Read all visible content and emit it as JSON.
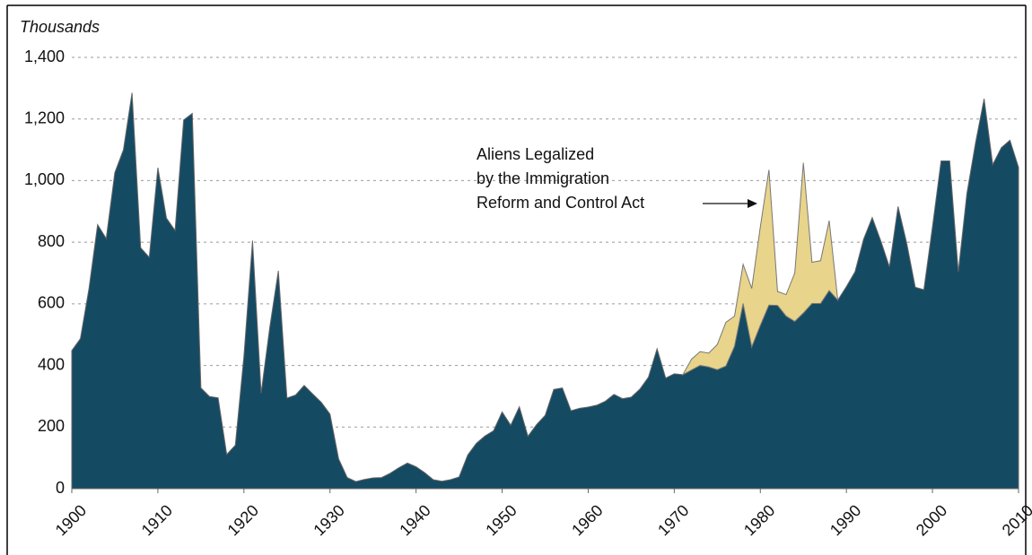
{
  "chart_data": {
    "type": "stacked_area",
    "y_label": "Thousands",
    "annotation": [
      "Aliens Legalized",
      "by the Immigration",
      "Reform and Control Act"
    ],
    "x": [
      1900,
      1901,
      1902,
      1903,
      1904,
      1905,
      1906,
      1907,
      1908,
      1909,
      1910,
      1911,
      1912,
      1913,
      1914,
      1915,
      1916,
      1917,
      1918,
      1919,
      1920,
      1921,
      1922,
      1923,
      1924,
      1925,
      1926,
      1927,
      1928,
      1929,
      1930,
      1931,
      1932,
      1933,
      1934,
      1935,
      1936,
      1937,
      1938,
      1939,
      1940,
      1941,
      1942,
      1943,
      1944,
      1945,
      1946,
      1947,
      1948,
      1949,
      1950,
      1951,
      1952,
      1953,
      1954,
      1955,
      1956,
      1957,
      1958,
      1959,
      1960,
      1961,
      1962,
      1963,
      1964,
      1965,
      1966,
      1967,
      1968,
      1969,
      1970,
      1971,
      1972,
      1973,
      1974,
      1975,
      1976,
      1977,
      1978,
      1979,
      1980,
      1981,
      1982,
      1983,
      1984,
      1985,
      1986,
      1987,
      1988,
      1989,
      1990,
      1991,
      1992,
      1993,
      1994,
      1995,
      1996,
      1997,
      1998,
      1999,
      2000,
      2001,
      2002,
      2003,
      2004,
      2005,
      2006,
      2007,
      2008,
      2009,
      2010
    ],
    "series": [
      {
        "color": "#154a63",
        "values": [
          448,
          487,
          650,
          857,
          812,
          1026,
          1100,
          1285,
          782,
          751,
          1042,
          878,
          838,
          1197,
          1218,
          327,
          299,
          295,
          111,
          141,
          430,
          805,
          310,
          523,
          707,
          294,
          304,
          335,
          307,
          280,
          242,
          97,
          36,
          23,
          30,
          35,
          36,
          50,
          68,
          83,
          71,
          52,
          29,
          24,
          29,
          38,
          109,
          147,
          171,
          188,
          249,
          206,
          266,
          170,
          208,
          238,
          322,
          327,
          253,
          261,
          265,
          271,
          284,
          306,
          292,
          297,
          323,
          362,
          454,
          359,
          373,
          370,
          385,
          400,
          395,
          386,
          398,
          462,
          601,
          460,
          530,
          596,
          595,
          560,
          543,
          570,
          601,
          601,
          643,
          612,
          656,
          704,
          810,
          880,
          804,
          720,
          916,
          798,
          654,
          646,
          850,
          1064,
          1064,
          704,
          958,
          1122,
          1266,
          1052,
          1107,
          1131,
          1043
        ]
      },
      {
        "color": "#e8d48a",
        "values": [
          null,
          null,
          null,
          null,
          null,
          null,
          null,
          null,
          null,
          null,
          null,
          null,
          null,
          null,
          null,
          null,
          null,
          null,
          null,
          null,
          null,
          null,
          null,
          null,
          null,
          null,
          null,
          null,
          null,
          null,
          null,
          null,
          null,
          null,
          null,
          null,
          null,
          null,
          null,
          null,
          null,
          null,
          null,
          null,
          null,
          null,
          null,
          null,
          null,
          null,
          null,
          null,
          null,
          null,
          null,
          null,
          null,
          null,
          null,
          null,
          null,
          null,
          null,
          null,
          null,
          null,
          null,
          null,
          null,
          null,
          null,
          0,
          35,
          45,
          45,
          82,
          142,
          98,
          127,
          190,
          320,
          439,
          45,
          70,
          157,
          488,
          134,
          139,
          227,
          0,
          null,
          null,
          null,
          null,
          null,
          null,
          null,
          null,
          null,
          null,
          null,
          null,
          null,
          null,
          null,
          null,
          null,
          null,
          null,
          null,
          null
        ]
      }
    ],
    "xlim": [
      1900,
      2010
    ],
    "xticks": [
      1900,
      1910,
      1920,
      1930,
      1940,
      1950,
      1960,
      1970,
      1980,
      1990,
      2000,
      2010
    ],
    "ylim": [
      0,
      1400
    ],
    "yticks": [
      0,
      200,
      400,
      600,
      800,
      {
        "value": 1000,
        "label": "1,000"
      },
      {
        "value": 1200,
        "label": "1,200"
      },
      {
        "value": 1400,
        "label": "1,400"
      }
    ],
    "grid": true
  }
}
